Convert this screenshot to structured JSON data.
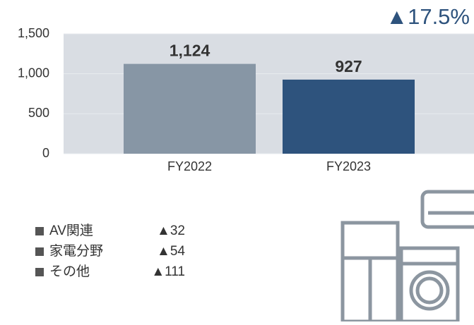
{
  "chart_data": {
    "type": "bar",
    "categories": [
      "FY2022",
      "FY2023"
    ],
    "values": [
      1124,
      927
    ],
    "value_labels": [
      "1,124",
      "927"
    ],
    "colors": [
      "#8796a5",
      "#2e537d"
    ],
    "ylim": [
      0,
      1500
    ],
    "yticks": [
      0,
      500,
      {
        "value": 1000,
        "label": "1,000"
      },
      {
        "value": 1500,
        "label": "1,500"
      }
    ],
    "grid": true,
    "annotation": "▲17.5%",
    "breakdown": [
      {
        "name": "AV関連",
        "label": "▲32"
      },
      {
        "name": "家電分野",
        "label": "▲54"
      },
      {
        "name": "その他",
        "label": "▲111"
      }
    ]
  }
}
